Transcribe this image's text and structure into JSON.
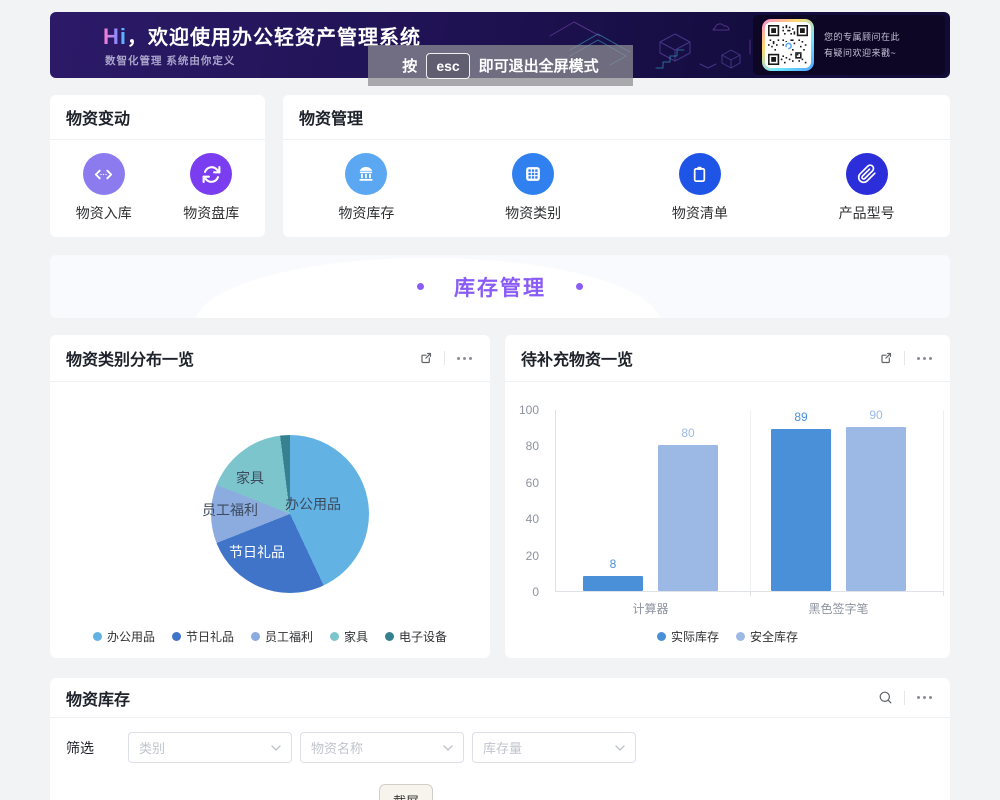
{
  "banner": {
    "greeting_hi": "Hi",
    "greeting_rest": "，欢迎使用办公轻资产管理系统",
    "subtitle": "数智化管理 系统由你定义",
    "qr_caption_line1": "您的专属顾问在此",
    "qr_caption_line2": "有疑问欢迎来戳~"
  },
  "esc_toast": {
    "prefix": "按",
    "key_label": "esc",
    "suffix": "即可退出全屏模式"
  },
  "cards": {
    "material_change": {
      "title": "物资变动",
      "items": [
        {
          "label": "物资入库",
          "icon": "code-arrows-icon",
          "color": "#8b7bef"
        },
        {
          "label": "物资盘库",
          "icon": "sync-icon",
          "color": "#7a3df0"
        }
      ]
    },
    "material_management": {
      "title": "物资管理",
      "items": [
        {
          "label": "物资库存",
          "icon": "bank-icon",
          "color": "#5ba7f2"
        },
        {
          "label": "物资类别",
          "icon": "grid-icon",
          "color": "#3080f0"
        },
        {
          "label": "物资清单",
          "icon": "clipboard-icon",
          "color": "#1f55e6"
        },
        {
          "label": "产品型号",
          "icon": "paperclip-icon",
          "color": "#2b2ed9"
        }
      ]
    }
  },
  "section_banner": {
    "title": "库存管理",
    "accent_color": "#8a5cf5"
  },
  "pie_card": {
    "title": "物资类别分布一览",
    "actions": [
      "external-link-icon",
      "more-icon"
    ]
  },
  "bar_card": {
    "title": "待补充物资一览",
    "actions": [
      "external-link-icon",
      "more-icon"
    ]
  },
  "inventory_card": {
    "title": "物资库存",
    "actions": [
      "search-icon",
      "more-icon"
    ],
    "filter_label": "筛选",
    "filters": [
      {
        "placeholder": "类别"
      },
      {
        "placeholder": "物资名称"
      },
      {
        "placeholder": "库存量"
      }
    ]
  },
  "tooltip_label": "截屏",
  "chart_data": [
    {
      "type": "pie",
      "title": "物资类别分布一览",
      "labels": [
        "办公用品",
        "节日礼品",
        "员工福利",
        "家具",
        "电子设备"
      ],
      "values": [
        43,
        26,
        12,
        17,
        2
      ],
      "values_note": "estimated_percent_no_numbers_shown",
      "colors": [
        "#63b2e4",
        "#3f74c8",
        "#8cabdf",
        "#7cc5cc",
        "#35818f"
      ],
      "legend_position": "bottom"
    },
    {
      "type": "bar",
      "title": "待补充物资一览",
      "categories": [
        "计算器",
        "黑色签字笔"
      ],
      "series": [
        {
          "name": "实际库存",
          "values": [
            8,
            89
          ],
          "color": "#4a90d9"
        },
        {
          "name": "安全库存",
          "values": [
            80,
            90
          ],
          "color": "#9cb9e6"
        }
      ],
      "ylim": [
        0,
        100
      ],
      "yticks": [
        0,
        20,
        40,
        60,
        80,
        100
      ],
      "legend_position": "bottom"
    }
  ]
}
